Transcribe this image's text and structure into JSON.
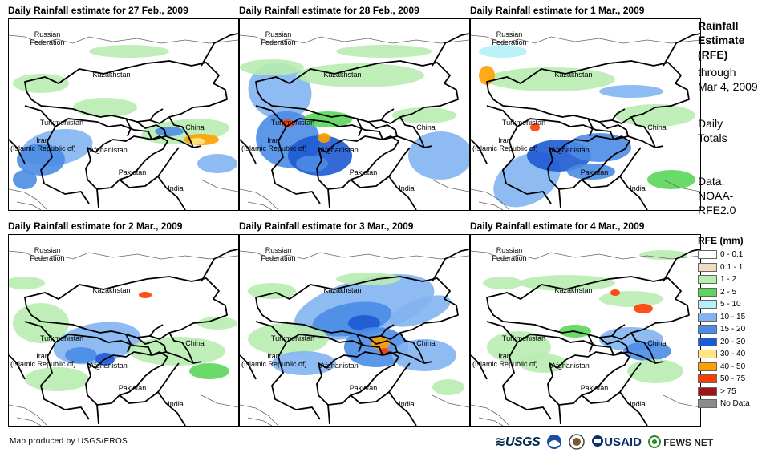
{
  "panels": [
    {
      "title": "Daily Rainfall estimate for 27 Feb., 2009",
      "labels": {
        "russia": "Russian\nFederation",
        "kazakhstan": "Kazakhstan",
        "turkmenistan": "Turkmenistan",
        "iran": "Iran\n(Islamic Republic of)",
        "afghanistan": "Afghanistan",
        "china": "China",
        "pakistan": "Pakistan",
        "india": "India"
      }
    },
    {
      "title": "Daily Rainfall estimate for 28 Feb., 2009",
      "labels": {
        "russia": "Russian\nFederation",
        "kazakhstan": "Kazakhstan",
        "turkmenistan": "Turkmenistan",
        "iran": "Iran\n(Islamic Republic of)",
        "afghanistan": "Afghanistan",
        "china": "China",
        "pakistan": "Pakistan",
        "india": "India"
      }
    },
    {
      "title": "Daily Rainfall estimate for 1 Mar., 2009",
      "labels": {
        "russia": "Russian\nFederation",
        "kazakhstan": "Kazakhstan",
        "turkmenistan": "Turkmenistan",
        "iran": "Iran\n(Islamic Republic of)",
        "afghanistan": "Afghanistan",
        "china": "China",
        "pakistan": "Pakistan",
        "india": "India"
      }
    },
    {
      "title": "Daily Rainfall estimate for 2 Mar., 2009",
      "labels": {
        "russia": "Russian\nFederation",
        "kazakhstan": "Kazakhstan",
        "turkmenistan": "Turkmenistan",
        "iran": "Iran\n(Islamic Republic of)",
        "afghanistan": "Afghanistan",
        "china": "China",
        "pakistan": "Pakistan",
        "india": "India"
      }
    },
    {
      "title": "Daily Rainfall estimate for 3 Mar., 2009",
      "labels": {
        "russia": "Russian\nFederation",
        "kazakhstan": "Kazakhstan",
        "turkmenistan": "Turkmenistan",
        "iran": "Iran\n(Islamic Republic of)",
        "afghanistan": "Afghanistan",
        "china": "China",
        "pakistan": "Pakistan",
        "india": "India"
      }
    },
    {
      "title": "Daily Rainfall estimate for 4 Mar., 2009",
      "labels": {
        "russia": "Russian\nFederation",
        "kazakhstan": "Kazakhstan",
        "turkmenistan": "Turkmenistan",
        "iran": "Iran\n(Islamic Republic of)",
        "afghanistan": "Afghanistan",
        "china": "China",
        "pakistan": "Pakistan",
        "india": "India"
      }
    }
  ],
  "sidebar": {
    "heading_line1": "Rainfall",
    "heading_line2": "Estimate",
    "heading_line3": "(RFE)",
    "through": "through",
    "date": "Mar 4, 2009",
    "daily": "Daily",
    "totals": "Totals",
    "data_label": "Data:",
    "source_line1": "NOAA-",
    "source_line2": "RFE2.0"
  },
  "legend": {
    "title": "RFE (mm)",
    "items": [
      {
        "label": "0 - 0.1",
        "color": "#ffffff"
      },
      {
        "label": "0.1 - 1",
        "color": "#f2dcc0"
      },
      {
        "label": "1 - 2",
        "color": "#b8ecb0"
      },
      {
        "label": "2 - 5",
        "color": "#5ad65a"
      },
      {
        "label": "5 - 10",
        "color": "#b4f0f8"
      },
      {
        "label": "10 - 15",
        "color": "#82b4f0"
      },
      {
        "label": "15 - 20",
        "color": "#4a8ce6"
      },
      {
        "label": "20 - 30",
        "color": "#1e5ad2"
      },
      {
        "label": "30 - 40",
        "color": "#ffe682"
      },
      {
        "label": "40 - 50",
        "color": "#ffa000"
      },
      {
        "label": "50 - 75",
        "color": "#ff3c00"
      },
      {
        "label": "> 75",
        "color": "#a01414"
      },
      {
        "label": "No Data",
        "color": "#8c8c8c"
      }
    ]
  },
  "footer": {
    "credit": "Map produced by USGS/EROS",
    "logos": [
      "USGS",
      "NOAA",
      "DOI",
      "USAID",
      "FEWS NET"
    ]
  }
}
